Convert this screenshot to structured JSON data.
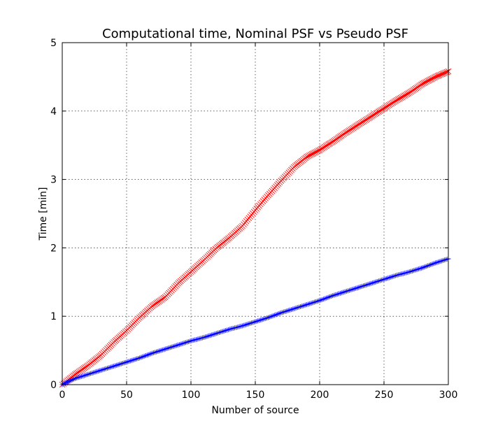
{
  "chart_data": {
    "type": "line",
    "title": "Computational time, Nominal PSF vs Pseudo PSF",
    "xlabel": "Number of source",
    "ylabel": "Time [min]",
    "xlim": [
      0,
      300
    ],
    "ylim": [
      0,
      5
    ],
    "xticks": [
      "0",
      "50",
      "100",
      "150",
      "200",
      "250",
      "300"
    ],
    "yticks": [
      "0",
      "1",
      "2",
      "3",
      "4",
      "5"
    ],
    "grid": true,
    "series": [
      {
        "color": "#ff0000",
        "marker": "x",
        "x": [
          0,
          10,
          20,
          30,
          40,
          50,
          60,
          70,
          80,
          90,
          100,
          110,
          120,
          130,
          140,
          150,
          160,
          170,
          180,
          190,
          200,
          210,
          220,
          230,
          240,
          250,
          260,
          270,
          280,
          290,
          300
        ],
        "values": [
          0.0,
          0.15,
          0.28,
          0.43,
          0.62,
          0.79,
          0.98,
          1.15,
          1.28,
          1.48,
          1.65,
          1.82,
          2.0,
          2.15,
          2.32,
          2.55,
          2.77,
          2.98,
          3.18,
          3.33,
          3.43,
          3.55,
          3.68,
          3.8,
          3.92,
          4.04,
          4.16,
          4.27,
          4.4,
          4.5,
          4.58
        ]
      },
      {
        "color": "#0000ff",
        "marker": "+",
        "x": [
          0,
          10,
          20,
          30,
          40,
          50,
          60,
          70,
          80,
          90,
          100,
          110,
          120,
          130,
          140,
          150,
          160,
          170,
          180,
          190,
          200,
          210,
          220,
          230,
          240,
          250,
          260,
          270,
          280,
          290,
          300
        ],
        "values": [
          0.0,
          0.09,
          0.15,
          0.21,
          0.27,
          0.33,
          0.39,
          0.46,
          0.52,
          0.58,
          0.64,
          0.69,
          0.75,
          0.81,
          0.86,
          0.92,
          0.98,
          1.05,
          1.11,
          1.17,
          1.23,
          1.3,
          1.36,
          1.42,
          1.48,
          1.54,
          1.6,
          1.65,
          1.71,
          1.78,
          1.84
        ]
      }
    ]
  }
}
